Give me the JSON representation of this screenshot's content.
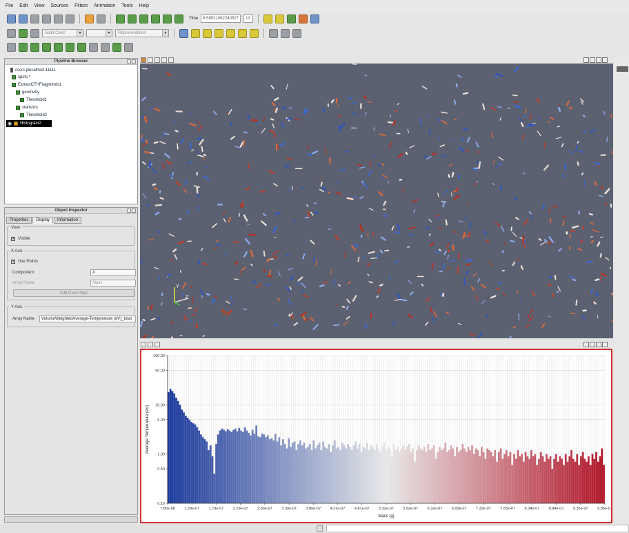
{
  "menu": [
    "File",
    "Edit",
    "View",
    "Sources",
    "Filters",
    "Animation",
    "Tools",
    "Help"
  ],
  "toolbar": {
    "time_label": "Time",
    "time_value": "6.59921062240527",
    "time_index": "13",
    "color_combo": "Solid Color",
    "representation_combo": "Representation"
  },
  "pipeline": {
    "title": "Pipeline Browser",
    "items": [
      {
        "label": "cssrc:j/localhost:11111"
      },
      {
        "label": "spcts.*"
      },
      {
        "label": "ExtractCTHFragments1"
      },
      {
        "label": "geometry"
      },
      {
        "label": "Threshold1"
      },
      {
        "label": "statistics"
      },
      {
        "label": "Threshold2"
      },
      {
        "label": "Histogram2"
      }
    ]
  },
  "inspector": {
    "title": "Object Inspector",
    "tabs": [
      "Properties",
      "Display",
      "Information"
    ],
    "view_group": "View",
    "visible_label": "Visible",
    "xaxis_group": "X Axis",
    "use_points_label": "Use Points",
    "component_label": "Component",
    "component_value": "X",
    "array_name_label": "Array Name",
    "array_name_value": "Mass",
    "edit_color_map": "Edit Color Map",
    "yaxis_group": "Y Axis",
    "y_array_name_label": "Array Name",
    "y_array_name_value": "VolumeWeightedAverage-Temperature (eV)_total"
  },
  "chart_data": {
    "type": "bar",
    "xlabel": "Mass (g)",
    "ylabel": "Average Temperature (eV)",
    "yscale": "log",
    "ylim": [
      0.1,
      100
    ],
    "yticks": [
      "100.00",
      "50.00",
      "10.00",
      "5.00",
      "1.00",
      "0.50",
      "0.10"
    ],
    "xticks": [
      "7.80e-08",
      "1.28e-07",
      "1.79e-07",
      "2.29e-07",
      "2.80e-07",
      "3.30e-07",
      "3.80e-07",
      "4.31e-07",
      "4.81e-07",
      "5.32e-07",
      "5.82e-07",
      "6.32e-07",
      "6.83e-07",
      "7.33e-07",
      "7.83e-07",
      "8.34e-07",
      "8.84e-07",
      "9.35e-07",
      "9.85e-07"
    ],
    "xlim": [
      7.8e-08,
      9.85e-07
    ],
    "values": [
      18,
      21,
      19,
      17,
      14,
      12,
      10,
      8,
      7,
      6,
      5.5,
      5,
      4.5,
      4.2,
      4,
      3.5,
      3,
      2.5,
      2.2,
      2,
      1.8,
      1.2,
      1.5,
      0.9,
      0.4,
      1.6,
      2.5,
      3,
      3.3,
      3.1,
      2.9,
      3.2,
      3,
      2.8,
      3.1,
      3.3,
      2.9,
      3.4,
      3,
      2.8,
      3.5,
      3,
      2.7,
      2.4,
      3.1,
      2.6,
      3.8,
      2.3,
      2.2,
      2.6,
      2.5,
      2.2,
      2.4,
      2,
      2.1,
      1.9,
      2.6,
      1.8,
      2.2,
      1.5,
      2,
      1.6,
      1.3,
      2.1,
      1.4,
      1.7,
      1.8,
      1.2,
      1.6,
      1.9,
      1.5,
      1.7,
      1.3,
      1.4,
      1.6,
      1.2,
      1.9,
      1.3,
      1.5,
      1.7,
      1.2,
      1.8,
      1.4,
      1.3,
      1.6,
      1.1,
      1.5,
      1.9,
      1.3,
      1.4,
      1.2,
      1.7,
      1.5,
      1.3,
      1.6,
      1.4,
      1.2,
      1.5,
      1.8,
      1.3,
      1.6,
      1.1,
      1.4,
      1.3,
      1.7,
      1.2,
      1.5,
      1.4,
      1.2,
      1.6,
      1.3,
      1.1,
      1.5,
      1.7,
      1.2,
      1.4,
      1.3,
      0.9,
      1.6,
      1.2,
      1.4,
      1.1,
      1.3,
      1.5,
      1.2,
      1.4,
      1.6,
      1.1,
      1.3,
      0.7,
      1.2,
      1.5,
      1.3,
      1.2,
      1.4,
      1.1,
      1.6,
      1.2,
      1.3,
      1.5,
      0.8,
      1.1,
      1.4,
      1.2,
      1.3,
      1.7,
      1.1,
      1.2,
      1.5,
      1.3,
      0.9,
      1.4,
      1.1,
      1.2,
      1.6,
      1.3,
      1.1,
      1.4,
      1.2,
      1.5,
      1,
      1.3,
      1.2,
      0.9,
      1.4,
      1.1,
      0.8,
      1.3,
      1.2,
      1.1,
      0.9,
      1.2,
      0.7,
      1.1,
      1.3,
      0.8,
      1,
      1.2,
      0.9,
      1.1,
      0.6,
      1,
      0.8,
      1.2,
      0.9,
      1,
      0.7,
      1.1,
      0.9,
      0.8,
      1.2,
      0.9,
      1,
      0.6,
      0.8,
      1.1,
      0.9,
      0.7,
      1,
      0.8,
      0.9,
      0.5,
      0.8,
      1,
      0.7,
      0.9,
      0.8,
      0.6,
      1,
      0.7,
      0.9,
      1.2,
      0.8,
      0.7,
      1,
      0.6,
      0.9,
      1.1,
      0.8,
      0.7,
      0.9,
      0.6,
      1,
      0.8,
      1.1,
      0.7,
      0.9,
      1.3,
      0.6
    ]
  },
  "colors": {
    "view_background": "#5c6171",
    "chart_frame": "#d8312e",
    "bar_low": "#1b3a9c",
    "bar_mid": "#e8e8e8",
    "bar_high": "#b2182b"
  }
}
